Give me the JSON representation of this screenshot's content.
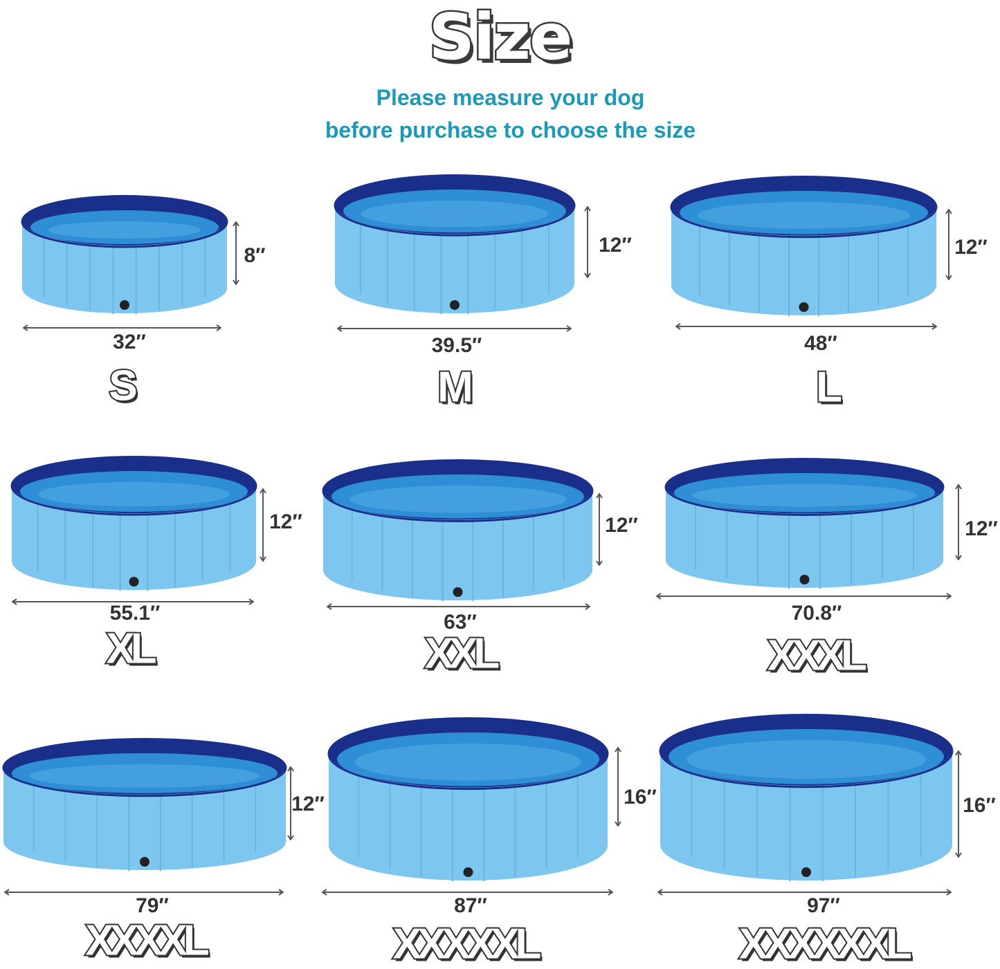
{
  "header": {
    "title": "Size",
    "subtitle_line1": "Please measure your dog",
    "subtitle_line2": "before purchase to choose the size"
  },
  "colors": {
    "rim": "#1a2f8a",
    "water": "#2f8fd6",
    "side": "#7cc6ef",
    "subtitle": "#1b9ab8"
  },
  "sizes": [
    {
      "size": "S",
      "diameter": "32″",
      "height": "8″"
    },
    {
      "size": "M",
      "diameter": "39.5″",
      "height": "12″"
    },
    {
      "size": "L",
      "diameter": "48″",
      "height": "12″"
    },
    {
      "size": "XL",
      "diameter": "55.1″",
      "height": "12″"
    },
    {
      "size": "XXL",
      "diameter": "63″",
      "height": "12″"
    },
    {
      "size": "XXXL",
      "diameter": "70.8″",
      "height": "12″"
    },
    {
      "size": "XXXXL",
      "diameter": "79″",
      "height": "12″"
    },
    {
      "size": "XXXXXL",
      "diameter": "87″",
      "height": "16″"
    },
    {
      "size": "XXXXXXL",
      "diameter": "97″",
      "height": "16″"
    }
  ]
}
